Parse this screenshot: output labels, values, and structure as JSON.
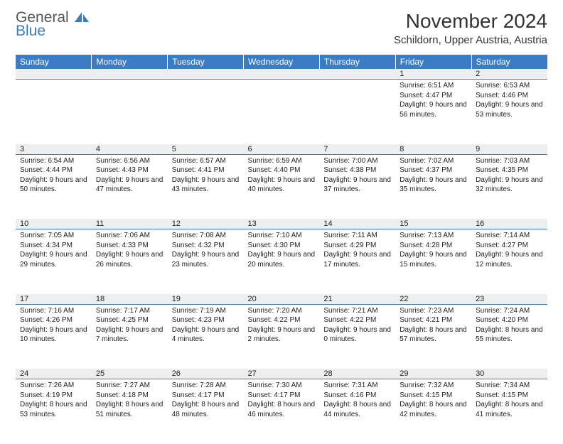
{
  "brand": {
    "line1": "General",
    "line2": "Blue"
  },
  "title": "November 2024",
  "location": "Schildorn, Upper Austria, Austria",
  "colors": {
    "header_bg": "#3b7cc4",
    "header_text": "#ffffff",
    "daynum_bg": "#eceeef",
    "divider": "#3b7cc4",
    "body_text": "#222222",
    "brand_gray": "#555555",
    "brand_blue": "#3b7cc4",
    "page_bg": "#ffffff"
  },
  "columns": [
    "Sunday",
    "Monday",
    "Tuesday",
    "Wednesday",
    "Thursday",
    "Friday",
    "Saturday"
  ],
  "weeks": [
    [
      {
        "day": "",
        "sunrise": "",
        "sunset": "",
        "daylight": ""
      },
      {
        "day": "",
        "sunrise": "",
        "sunset": "",
        "daylight": ""
      },
      {
        "day": "",
        "sunrise": "",
        "sunset": "",
        "daylight": ""
      },
      {
        "day": "",
        "sunrise": "",
        "sunset": "",
        "daylight": ""
      },
      {
        "day": "",
        "sunrise": "",
        "sunset": "",
        "daylight": ""
      },
      {
        "day": "1",
        "sunrise": "Sunrise: 6:51 AM",
        "sunset": "Sunset: 4:47 PM",
        "daylight": "Daylight: 9 hours and 56 minutes."
      },
      {
        "day": "2",
        "sunrise": "Sunrise: 6:53 AM",
        "sunset": "Sunset: 4:46 PM",
        "daylight": "Daylight: 9 hours and 53 minutes."
      }
    ],
    [
      {
        "day": "3",
        "sunrise": "Sunrise: 6:54 AM",
        "sunset": "Sunset: 4:44 PM",
        "daylight": "Daylight: 9 hours and 50 minutes."
      },
      {
        "day": "4",
        "sunrise": "Sunrise: 6:56 AM",
        "sunset": "Sunset: 4:43 PM",
        "daylight": "Daylight: 9 hours and 47 minutes."
      },
      {
        "day": "5",
        "sunrise": "Sunrise: 6:57 AM",
        "sunset": "Sunset: 4:41 PM",
        "daylight": "Daylight: 9 hours and 43 minutes."
      },
      {
        "day": "6",
        "sunrise": "Sunrise: 6:59 AM",
        "sunset": "Sunset: 4:40 PM",
        "daylight": "Daylight: 9 hours and 40 minutes."
      },
      {
        "day": "7",
        "sunrise": "Sunrise: 7:00 AM",
        "sunset": "Sunset: 4:38 PM",
        "daylight": "Daylight: 9 hours and 37 minutes."
      },
      {
        "day": "8",
        "sunrise": "Sunrise: 7:02 AM",
        "sunset": "Sunset: 4:37 PM",
        "daylight": "Daylight: 9 hours and 35 minutes."
      },
      {
        "day": "9",
        "sunrise": "Sunrise: 7:03 AM",
        "sunset": "Sunset: 4:35 PM",
        "daylight": "Daylight: 9 hours and 32 minutes."
      }
    ],
    [
      {
        "day": "10",
        "sunrise": "Sunrise: 7:05 AM",
        "sunset": "Sunset: 4:34 PM",
        "daylight": "Daylight: 9 hours and 29 minutes."
      },
      {
        "day": "11",
        "sunrise": "Sunrise: 7:06 AM",
        "sunset": "Sunset: 4:33 PM",
        "daylight": "Daylight: 9 hours and 26 minutes."
      },
      {
        "day": "12",
        "sunrise": "Sunrise: 7:08 AM",
        "sunset": "Sunset: 4:32 PM",
        "daylight": "Daylight: 9 hours and 23 minutes."
      },
      {
        "day": "13",
        "sunrise": "Sunrise: 7:10 AM",
        "sunset": "Sunset: 4:30 PM",
        "daylight": "Daylight: 9 hours and 20 minutes."
      },
      {
        "day": "14",
        "sunrise": "Sunrise: 7:11 AM",
        "sunset": "Sunset: 4:29 PM",
        "daylight": "Daylight: 9 hours and 17 minutes."
      },
      {
        "day": "15",
        "sunrise": "Sunrise: 7:13 AM",
        "sunset": "Sunset: 4:28 PM",
        "daylight": "Daylight: 9 hours and 15 minutes."
      },
      {
        "day": "16",
        "sunrise": "Sunrise: 7:14 AM",
        "sunset": "Sunset: 4:27 PM",
        "daylight": "Daylight: 9 hours and 12 minutes."
      }
    ],
    [
      {
        "day": "17",
        "sunrise": "Sunrise: 7:16 AM",
        "sunset": "Sunset: 4:26 PM",
        "daylight": "Daylight: 9 hours and 10 minutes."
      },
      {
        "day": "18",
        "sunrise": "Sunrise: 7:17 AM",
        "sunset": "Sunset: 4:25 PM",
        "daylight": "Daylight: 9 hours and 7 minutes."
      },
      {
        "day": "19",
        "sunrise": "Sunrise: 7:19 AM",
        "sunset": "Sunset: 4:23 PM",
        "daylight": "Daylight: 9 hours and 4 minutes."
      },
      {
        "day": "20",
        "sunrise": "Sunrise: 7:20 AM",
        "sunset": "Sunset: 4:22 PM",
        "daylight": "Daylight: 9 hours and 2 minutes."
      },
      {
        "day": "21",
        "sunrise": "Sunrise: 7:21 AM",
        "sunset": "Sunset: 4:22 PM",
        "daylight": "Daylight: 9 hours and 0 minutes."
      },
      {
        "day": "22",
        "sunrise": "Sunrise: 7:23 AM",
        "sunset": "Sunset: 4:21 PM",
        "daylight": "Daylight: 8 hours and 57 minutes."
      },
      {
        "day": "23",
        "sunrise": "Sunrise: 7:24 AM",
        "sunset": "Sunset: 4:20 PM",
        "daylight": "Daylight: 8 hours and 55 minutes."
      }
    ],
    [
      {
        "day": "24",
        "sunrise": "Sunrise: 7:26 AM",
        "sunset": "Sunset: 4:19 PM",
        "daylight": "Daylight: 8 hours and 53 minutes."
      },
      {
        "day": "25",
        "sunrise": "Sunrise: 7:27 AM",
        "sunset": "Sunset: 4:18 PM",
        "daylight": "Daylight: 8 hours and 51 minutes."
      },
      {
        "day": "26",
        "sunrise": "Sunrise: 7:28 AM",
        "sunset": "Sunset: 4:17 PM",
        "daylight": "Daylight: 8 hours and 48 minutes."
      },
      {
        "day": "27",
        "sunrise": "Sunrise: 7:30 AM",
        "sunset": "Sunset: 4:17 PM",
        "daylight": "Daylight: 8 hours and 46 minutes."
      },
      {
        "day": "28",
        "sunrise": "Sunrise: 7:31 AM",
        "sunset": "Sunset: 4:16 PM",
        "daylight": "Daylight: 8 hours and 44 minutes."
      },
      {
        "day": "29",
        "sunrise": "Sunrise: 7:32 AM",
        "sunset": "Sunset: 4:15 PM",
        "daylight": "Daylight: 8 hours and 42 minutes."
      },
      {
        "day": "30",
        "sunrise": "Sunrise: 7:34 AM",
        "sunset": "Sunset: 4:15 PM",
        "daylight": "Daylight: 8 hours and 41 minutes."
      }
    ]
  ]
}
